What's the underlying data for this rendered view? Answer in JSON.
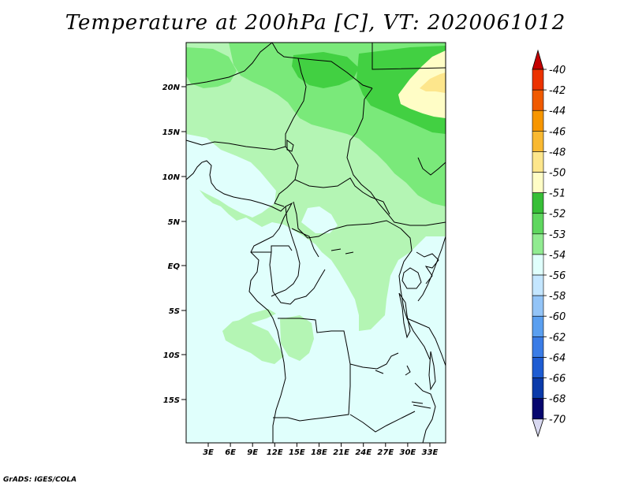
{
  "title": "Temperature at 200hPa [C], VT: 2020061012",
  "footer": "GrADS: IGES/COLA",
  "map": {
    "lat_ticks": [
      "20N",
      "15N",
      "10N",
      "5N",
      "EQ",
      "5S",
      "10S",
      "15S"
    ],
    "lon_ticks": [
      "3E",
      "6E",
      "9E",
      "12E",
      "15E",
      "18E",
      "21E",
      "24E",
      "27E",
      "30E",
      "33E"
    ]
  },
  "colorbar": {
    "levels": [
      "-40",
      "-42",
      "-44",
      "-46",
      "-48",
      "-50",
      "-51",
      "-52",
      "-53",
      "-54",
      "-56",
      "-58",
      "-60",
      "-62",
      "-64",
      "-66",
      "-68",
      "-70"
    ],
    "colors": [
      "#c40000",
      "#ec3200",
      "#f05a00",
      "#f79600",
      "#f9b932",
      "#fde68c",
      "#fffdc6",
      "#37bf37",
      "#5fd75f",
      "#91eb91",
      "#e0fffc",
      "#c4e6ff",
      "#93c4f7",
      "#5a9ff0",
      "#3a7ce6",
      "#1e5cd2",
      "#0a3aaa",
      "#06066e"
    ],
    "top_color": "#c40000",
    "bottom_color": "#d8d8f0"
  },
  "field_colors": {
    "c54": "#e0fffc",
    "c53": "#b4f5b4",
    "c52": "#7ae97a",
    "c51": "#42d042",
    "c50": "#fffdc6",
    "c48": "#fde68c"
  }
}
